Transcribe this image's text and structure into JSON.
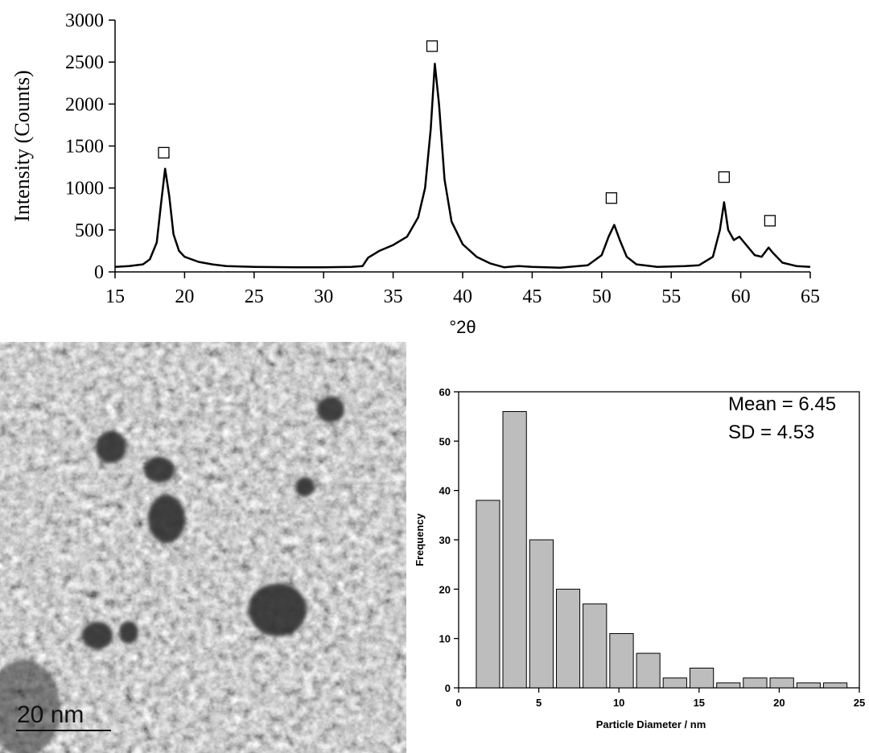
{
  "chart_data": [
    {
      "type": "line",
      "ylabel": "Intensity (Counts)",
      "xlabel": "°2θ",
      "xlim": [
        15,
        65
      ],
      "xticks": [
        15,
        20,
        25,
        30,
        35,
        40,
        45,
        50,
        55,
        60,
        65
      ],
      "ylim": [
        0,
        3000
      ],
      "yticks": [
        0,
        500,
        1000,
        1500,
        2000,
        2500,
        3000
      ],
      "color": "#000000",
      "x": [
        15,
        16,
        17,
        17.5,
        18,
        18.3,
        18.6,
        18.9,
        19.2,
        19.6,
        20,
        21,
        22,
        23,
        25,
        28,
        30,
        32,
        32.8,
        33.2,
        34,
        35,
        36,
        36.8,
        37.3,
        37.7,
        38,
        38.3,
        38.7,
        39.2,
        40,
        41,
        42,
        43,
        44,
        45,
        47,
        49,
        50,
        50.5,
        50.9,
        51.3,
        51.8,
        52.5,
        54,
        56,
        57,
        58,
        58.5,
        58.8,
        59.1,
        59.5,
        59.9,
        60.3,
        61,
        61.5,
        62,
        62.3,
        63,
        64,
        65
      ],
      "values": [
        60,
        70,
        90,
        150,
        350,
        800,
        1230,
        900,
        450,
        250,
        180,
        120,
        90,
        70,
        60,
        55,
        55,
        60,
        70,
        170,
        250,
        320,
        420,
        650,
        1000,
        1700,
        2480,
        2000,
        1100,
        600,
        330,
        180,
        100,
        55,
        70,
        60,
        50,
        80,
        200,
        420,
        560,
        380,
        180,
        90,
        60,
        70,
        80,
        180,
        500,
        830,
        500,
        380,
        420,
        340,
        200,
        180,
        290,
        230,
        110,
        70,
        60
      ],
      "peak_markers": {
        "x": [
          18.5,
          37.8,
          50.7,
          58.8,
          62.1
        ],
        "y": [
          1420,
          2690,
          880,
          1130,
          610
        ]
      }
    },
    {
      "type": "histogram",
      "xlabel": "Particle Diameter / nm",
      "ylabel": "Frequency",
      "annotations": [
        "Mean = 6.45",
        "SD = 4.53"
      ],
      "xlim": [
        0,
        25
      ],
      "xticks": [
        0,
        5,
        10,
        15,
        20,
        25
      ],
      "ylim": [
        0,
        60
      ],
      "yticks": [
        0,
        10,
        20,
        30,
        40,
        50,
        60
      ],
      "color": "#bdbdbd",
      "bins": [
        1,
        2.66,
        4.33,
        6,
        7.66,
        9.33,
        11,
        12.66,
        14.33,
        16,
        17.66,
        19.33,
        21,
        22.66,
        24.33
      ],
      "values": [
        38,
        56,
        30,
        20,
        17,
        11,
        7,
        2,
        4,
        1,
        2,
        2,
        1,
        1
      ]
    }
  ],
  "image": {
    "scale_bar_label": "20 nm"
  }
}
